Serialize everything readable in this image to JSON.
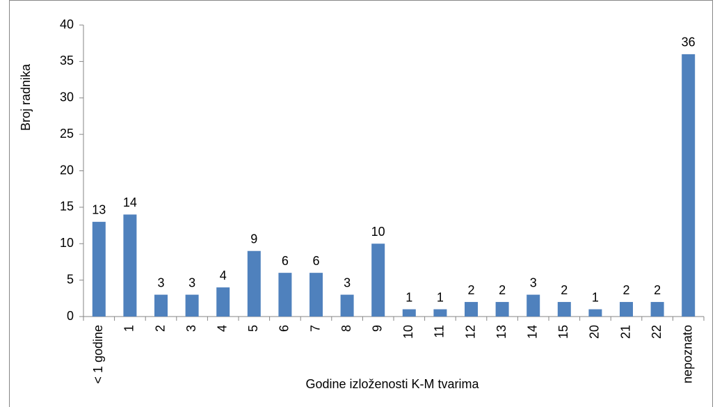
{
  "chart_data": {
    "type": "bar",
    "x_label": "Godine izloženosti K-M tvarima",
    "y_label": "Broj radnika",
    "categories": [
      "< 1 godine",
      "1",
      "2",
      "3",
      "4",
      "5",
      "6",
      "7",
      "8",
      "9",
      "10",
      "11",
      "12",
      "13",
      "14",
      "15",
      "20",
      "21",
      "22",
      "nepoznato"
    ],
    "values": [
      13,
      14,
      3,
      3,
      4,
      9,
      6,
      6,
      3,
      10,
      1,
      1,
      2,
      2,
      3,
      2,
      1,
      2,
      2,
      36
    ],
    "color": "#4f81bd",
    "ylim": [
      0,
      40
    ],
    "yticks": [
      0,
      5,
      10,
      15,
      20,
      25,
      30,
      35,
      40
    ],
    "grid": false
  }
}
